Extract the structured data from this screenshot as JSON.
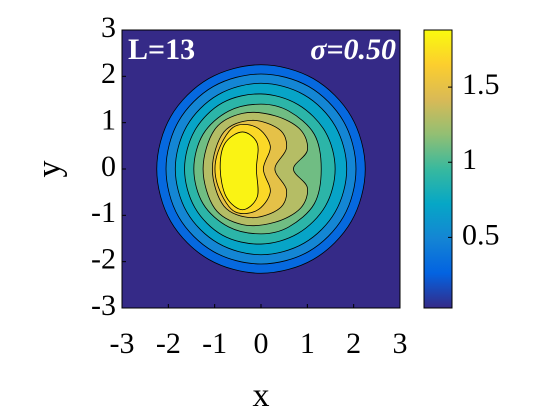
{
  "chart_data": {
    "type": "contourf",
    "xlabel": "x",
    "ylabel": "y",
    "annotations": [
      "L=13",
      "σ=0.50"
    ],
    "xlim": [
      -3,
      3
    ],
    "xticks": [
      -3,
      -2,
      -1,
      0,
      1,
      2,
      3
    ],
    "ylim": [
      -3,
      3
    ],
    "yticks": [
      -3,
      -2,
      -1,
      0,
      1,
      2,
      3
    ],
    "clim": [
      0.03,
      1.88
    ],
    "cticks": [
      0.5,
      1,
      1.5
    ],
    "colormap": [
      "#352a87",
      "#0363e1",
      "#1485d4",
      "#06a7c6",
      "#38b99e",
      "#92bf73",
      "#d9ba56",
      "#fcce2e",
      "#f9fb0e"
    ],
    "contours": [
      {
        "level": 0.2,
        "x": [
          2.25,
          1.95,
          1.13,
          0,
          -1.13,
          -1.95,
          -2.25,
          -1.95,
          -1.13,
          0,
          1.13,
          1.95
        ],
        "y": [
          0,
          1.13,
          1.95,
          2.25,
          1.95,
          1.13,
          0,
          -1.13,
          -1.95,
          -2.25,
          -1.95,
          -1.13
        ]
      },
      {
        "level": 0.4,
        "x": [
          2.05,
          1.78,
          1.03,
          0,
          -1.03,
          -1.78,
          -2.05,
          -1.78,
          -1.03,
          0,
          1.03,
          1.78
        ],
        "y": [
          0,
          1.03,
          1.78,
          2.05,
          1.78,
          1.03,
          0,
          -1.03,
          -1.78,
          -2.05,
          -1.78,
          -1.03
        ]
      },
      {
        "level": 0.6,
        "x": [
          1.85,
          1.6,
          0.93,
          0,
          -0.93,
          -1.6,
          -1.85,
          -1.6,
          -0.93,
          0,
          0.93,
          1.6
        ],
        "y": [
          0,
          0.93,
          1.6,
          1.85,
          1.6,
          0.93,
          0,
          -0.93,
          -1.6,
          -1.85,
          -1.6,
          -0.93
        ]
      },
      {
        "level": 0.8,
        "x": [
          1.6,
          1.39,
          0.8,
          0,
          -0.83,
          -1.43,
          -1.65,
          -1.43,
          -0.83,
          0,
          0.8,
          1.39
        ],
        "y": [
          0,
          0.8,
          1.39,
          1.62,
          1.43,
          0.83,
          0,
          -0.83,
          -1.43,
          -1.62,
          -1.39,
          -0.8
        ]
      },
      {
        "level": 1.0,
        "x": [
          1.3,
          1.15,
          0.6,
          0,
          -0.7,
          -1.25,
          -1.45,
          -1.25,
          -0.7,
          0,
          0.6,
          1.15
        ],
        "y": [
          0,
          0.75,
          1.25,
          1.4,
          1.25,
          0.75,
          0,
          -0.75,
          -1.25,
          -1.4,
          -1.25,
          -0.75
        ]
      },
      {
        "level": 1.2,
        "x": [
          0.7,
          1.0,
          0.85,
          0.3,
          -0.4,
          -1.0,
          -1.25,
          -1.0,
          -0.4,
          0.3,
          0.85,
          1.0
        ],
        "y": [
          0,
          0.4,
          0.85,
          1.15,
          1.2,
          0.85,
          0,
          -0.85,
          -1.2,
          -1.15,
          -0.85,
          -0.4
        ]
      },
      {
        "level": 1.4,
        "x": [
          0.3,
          0.55,
          0.4,
          -0.2,
          -0.8,
          -1.05,
          -0.8,
          -0.2,
          0.4,
          0.55
        ],
        "y": [
          0,
          0.45,
          0.85,
          1.05,
          0.8,
          0,
          -0.8,
          -1.05,
          -0.85,
          -0.45
        ]
      },
      {
        "level": 1.6,
        "x": [
          0.05,
          0.2,
          -0.1,
          -0.6,
          -0.95,
          -0.95,
          -0.6,
          -0.1,
          0.2
        ],
        "y": [
          0,
          0.5,
          0.9,
          0.9,
          0.3,
          -0.3,
          -0.9,
          -0.9,
          -0.5
        ]
      },
      {
        "level": 1.8,
        "x": [
          -0.1,
          -0.08,
          -0.4,
          -0.78,
          -0.88,
          -0.75,
          -0.4,
          -0.08
        ],
        "y": [
          0,
          0.55,
          0.8,
          0.55,
          0,
          -0.6,
          -0.88,
          -0.6
        ]
      }
    ]
  }
}
